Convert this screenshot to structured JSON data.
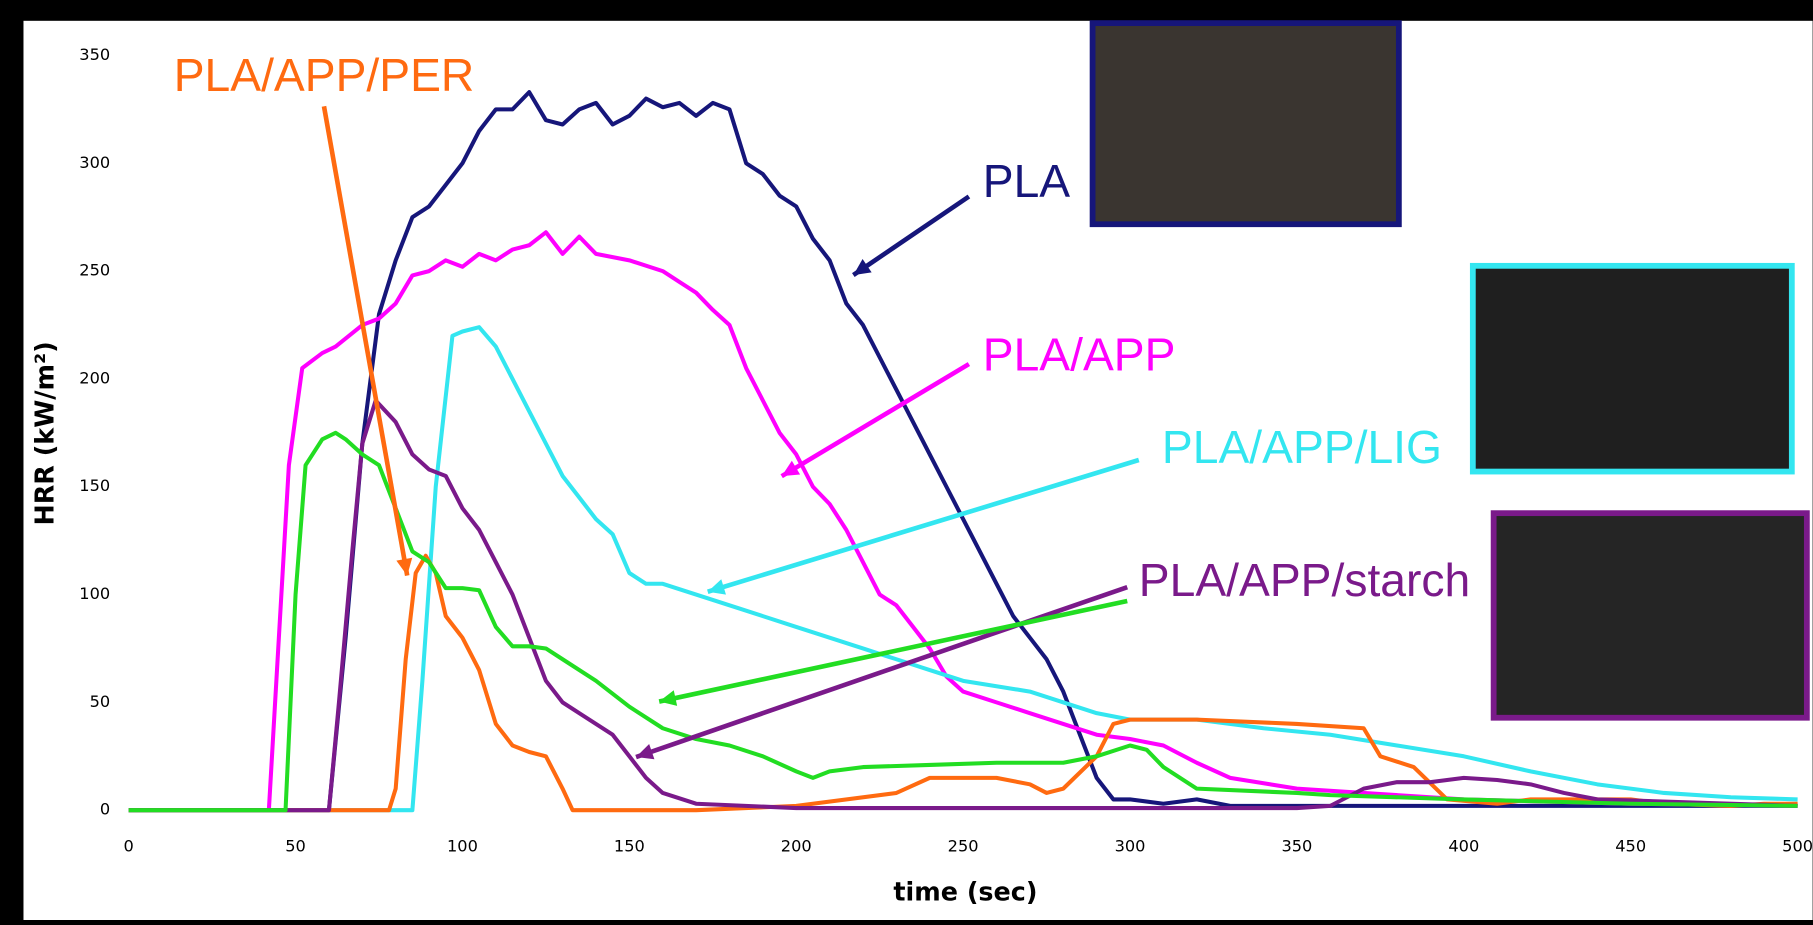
{
  "chart_data": {
    "type": "line",
    "xlabel": "time (sec)",
    "ylabel": "HRR (kW/m²)",
    "xlim": [
      0,
      500
    ],
    "ylim": [
      0,
      350
    ],
    "xticks": [
      0,
      50,
      100,
      150,
      200,
      250,
      300,
      350,
      400,
      450,
      500
    ],
    "yticks": [
      0,
      50,
      100,
      150,
      200,
      250,
      300,
      350
    ],
    "grid": false,
    "series": [
      {
        "name": "PLA",
        "color": "#16167a",
        "x": [
          0,
          58,
          60,
          65,
          70,
          75,
          80,
          85,
          90,
          95,
          100,
          105,
          110,
          115,
          120,
          125,
          130,
          135,
          140,
          145,
          150,
          155,
          160,
          165,
          170,
          175,
          180,
          185,
          190,
          195,
          200,
          205,
          210,
          215,
          220,
          225,
          230,
          235,
          240,
          245,
          250,
          255,
          260,
          265,
          270,
          275,
          280,
          285,
          290,
          295,
          300,
          310,
          320,
          330,
          350,
          400,
          500
        ],
        "values": [
          0,
          0,
          0,
          80,
          170,
          230,
          255,
          275,
          280,
          290,
          300,
          315,
          325,
          325,
          333,
          320,
          318,
          325,
          328,
          318,
          322,
          330,
          326,
          328,
          322,
          328,
          325,
          300,
          295,
          285,
          280,
          265,
          255,
          235,
          225,
          210,
          195,
          180,
          165,
          150,
          135,
          120,
          105,
          90,
          80,
          70,
          55,
          35,
          15,
          5,
          5,
          3,
          5,
          2,
          2,
          2,
          2
        ]
      },
      {
        "name": "PLA/APP",
        "color": "#ff00ff",
        "x": [
          0,
          42,
          45,
          48,
          52,
          58,
          62,
          70,
          75,
          80,
          85,
          90,
          95,
          100,
          105,
          110,
          115,
          120,
          125,
          130,
          135,
          140,
          150,
          160,
          165,
          170,
          175,
          180,
          185,
          190,
          195,
          200,
          205,
          210,
          215,
          220,
          225,
          230,
          235,
          240,
          245,
          250,
          260,
          270,
          280,
          290,
          300,
          310,
          320,
          330,
          350,
          400,
          450,
          500
        ],
        "values": [
          0,
          0,
          80,
          160,
          205,
          212,
          215,
          225,
          228,
          235,
          248,
          250,
          255,
          252,
          258,
          255,
          260,
          262,
          268,
          258,
          266,
          258,
          255,
          250,
          245,
          240,
          232,
          225,
          205,
          190,
          175,
          165,
          150,
          142,
          130,
          115,
          100,
          95,
          85,
          75,
          62,
          55,
          50,
          45,
          40,
          35,
          33,
          30,
          22,
          15,
          10,
          5,
          3,
          2
        ]
      },
      {
        "name": "PLA/APP/LIG",
        "color": "#33e6f0",
        "x": [
          0,
          83,
          85,
          88,
          92,
          97,
          100,
          105,
          110,
          115,
          120,
          125,
          130,
          135,
          140,
          145,
          150,
          155,
          160,
          170,
          180,
          190,
          200,
          210,
          220,
          230,
          240,
          250,
          270,
          290,
          300,
          320,
          340,
          360,
          380,
          400,
          420,
          440,
          460,
          480,
          500
        ],
        "values": [
          0,
          0,
          0,
          60,
          150,
          220,
          222,
          224,
          215,
          200,
          185,
          170,
          155,
          145,
          135,
          128,
          110,
          105,
          105,
          100,
          95,
          90,
          85,
          80,
          75,
          70,
          65,
          60,
          55,
          45,
          42,
          42,
          38,
          35,
          30,
          25,
          18,
          12,
          8,
          6,
          5
        ]
      },
      {
        "name": "PLA/APP/PER",
        "color": "#ff6a10",
        "x": [
          0,
          78,
          80,
          83,
          86,
          89,
          92,
          95,
          100,
          105,
          110,
          115,
          120,
          125,
          130,
          133,
          150,
          170,
          200,
          230,
          240,
          260,
          270,
          275,
          280,
          290,
          295,
          300,
          320,
          350,
          370,
          375,
          385,
          395,
          410,
          420,
          440,
          450,
          460,
          480,
          490,
          500
        ],
        "values": [
          0,
          0,
          10,
          70,
          110,
          118,
          110,
          90,
          80,
          65,
          40,
          30,
          27,
          25,
          10,
          0,
          0,
          0,
          2,
          8,
          15,
          15,
          12,
          8,
          10,
          25,
          40,
          42,
          42,
          40,
          38,
          25,
          20,
          5,
          3,
          5,
          5,
          5,
          3,
          2,
          3,
          3
        ]
      },
      {
        "name": "PLA/APP/starch",
        "color": "#7a1a8a",
        "x": [
          0,
          58,
          60,
          63,
          67,
          70,
          74,
          80,
          85,
          90,
          95,
          100,
          105,
          110,
          115,
          120,
          125,
          130,
          135,
          140,
          145,
          150,
          155,
          160,
          170,
          200,
          250,
          300,
          350,
          360,
          370,
          380,
          390,
          400,
          410,
          420,
          430,
          440,
          500
        ],
        "values": [
          0,
          0,
          0,
          50,
          120,
          170,
          190,
          180,
          165,
          158,
          155,
          140,
          130,
          115,
          100,
          80,
          60,
          50,
          45,
          40,
          35,
          25,
          15,
          8,
          3,
          1,
          1,
          1,
          1,
          2,
          10,
          13,
          13,
          15,
          14,
          12,
          8,
          5,
          2
        ]
      },
      {
        "color": "#22dd22",
        "x": [
          0,
          47,
          50,
          53,
          58,
          62,
          65,
          70,
          75,
          80,
          85,
          90,
          95,
          100,
          105,
          110,
          115,
          120,
          125,
          130,
          140,
          150,
          160,
          170,
          180,
          190,
          200,
          205,
          210,
          220,
          240,
          260,
          280,
          290,
          300,
          305,
          310,
          320,
          350,
          360,
          400,
          450,
          500
        ],
        "values": [
          0,
          0,
          100,
          160,
          172,
          175,
          172,
          165,
          160,
          140,
          120,
          115,
          103,
          103,
          102,
          85,
          76,
          76,
          75,
          70,
          60,
          48,
          38,
          33,
          30,
          25,
          18,
          15,
          18,
          20,
          21,
          22,
          22,
          25,
          30,
          28,
          20,
          10,
          8,
          7,
          5,
          3,
          2
        ]
      }
    ]
  }
}
